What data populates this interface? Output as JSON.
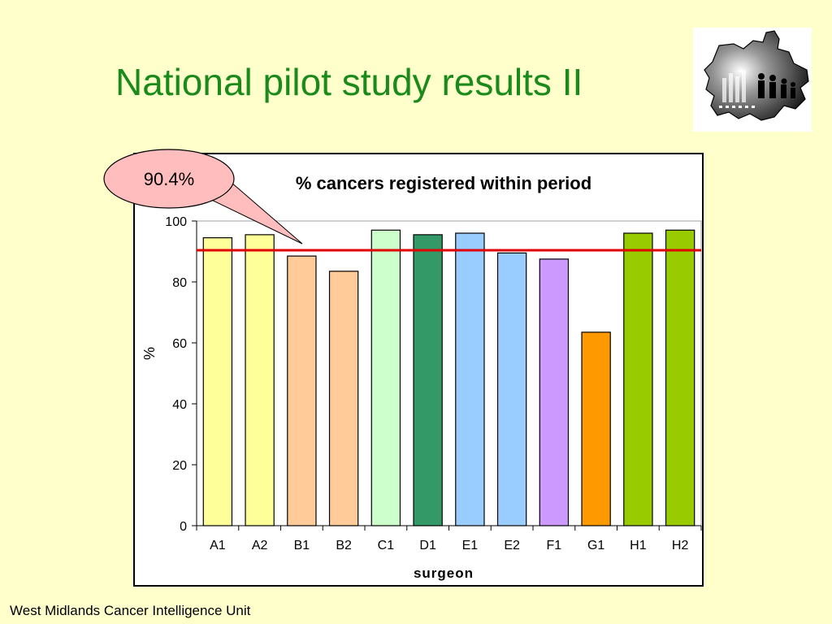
{
  "slide": {
    "title": "National pilot study results II",
    "footer": "West Midlands Cancer Intelligence Unit",
    "callout": "90.4%"
  },
  "logo": {
    "icon": "west-midlands-population-logo"
  },
  "colors": {
    "background": "#ffffcc",
    "title": "#1a8a1a",
    "target_line": "#e00000"
  },
  "chart_data": {
    "type": "bar",
    "title": "% cancers registered within period",
    "xlabel": "surgeon",
    "ylabel": "%",
    "categories": [
      "A1",
      "A2",
      "B1",
      "B2",
      "C1",
      "D1",
      "E1",
      "E2",
      "F1",
      "G1",
      "H1",
      "H2"
    ],
    "values": [
      94.5,
      95.5,
      88.5,
      83.5,
      97,
      95.5,
      96,
      89.5,
      87.5,
      63.5,
      96,
      97
    ],
    "bar_colors": [
      "#ffff99",
      "#ffff99",
      "#ffcc99",
      "#ffcc99",
      "#ccffcc",
      "#339966",
      "#99ccff",
      "#99ccff",
      "#cc99ff",
      "#ff9900",
      "#99cc00",
      "#99cc00"
    ],
    "yticks": [
      0,
      20,
      40,
      60,
      80,
      100
    ],
    "ylim": [
      0,
      100
    ],
    "reference_line": {
      "value": 90.4,
      "label": "90.4%"
    },
    "grid": false,
    "legend": "none"
  }
}
